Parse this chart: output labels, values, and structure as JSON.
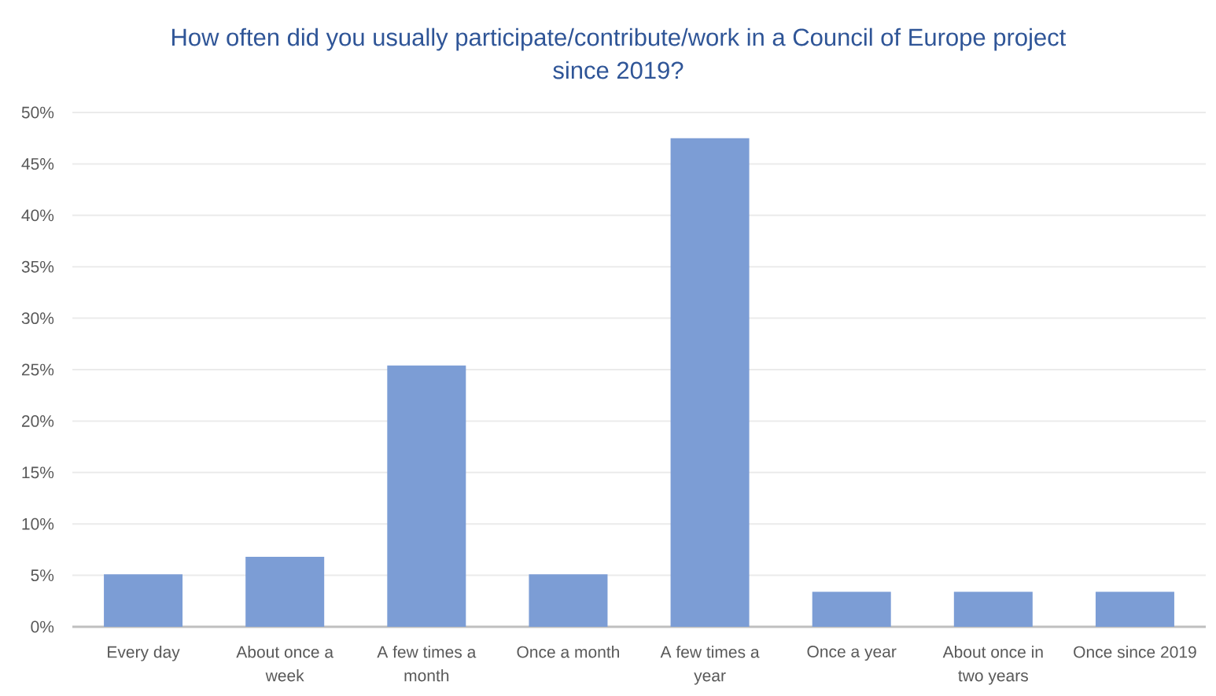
{
  "chart_data": {
    "type": "bar",
    "title": "How often did you usually participate/contribute/work in a Council of Europe project since 2019?",
    "categories": [
      "Every day",
      "About once a week",
      "A few times a month",
      "Once a month",
      "A few times a year",
      "Once a year",
      "About once in two years",
      "Once since 2019"
    ],
    "values": [
      5.1,
      6.8,
      25.4,
      5.1,
      47.5,
      3.4,
      3.4,
      3.4
    ],
    "color": "#7c9dd5",
    "ylim": [
      0,
      50
    ],
    "yticks": [
      {
        "value": 0,
        "label": "0%"
      },
      {
        "value": 5,
        "label": "5%"
      },
      {
        "value": 10,
        "label": "10%"
      },
      {
        "value": 15,
        "label": "15%"
      },
      {
        "value": 20,
        "label": "20%"
      },
      {
        "value": 25,
        "label": "25%"
      },
      {
        "value": 30,
        "label": "30%"
      },
      {
        "value": 35,
        "label": "35%"
      },
      {
        "value": 40,
        "label": "40%"
      },
      {
        "value": 45,
        "label": "45%"
      },
      {
        "value": 50,
        "label": "50%"
      }
    ],
    "grid": "y"
  }
}
